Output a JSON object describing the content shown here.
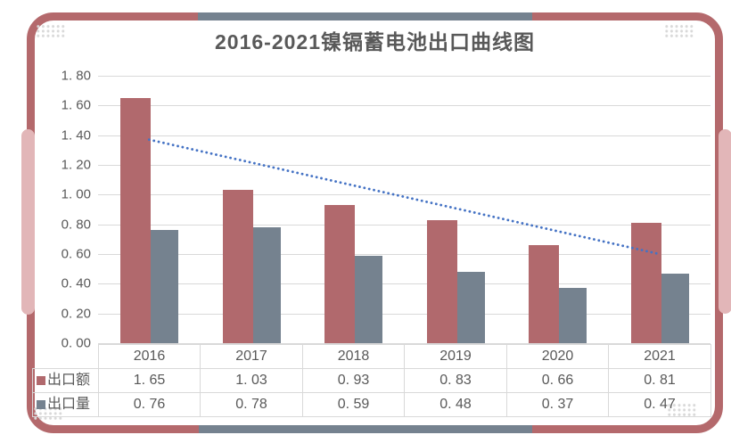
{
  "title": "2016-2021镍镉蓄电池出口曲线图",
  "chart_data": {
    "type": "bar",
    "title": "2016-2021镍镉蓄电池出口曲线图",
    "categories": [
      "2016",
      "2017",
      "2018",
      "2019",
      "2020",
      "2021"
    ],
    "series": [
      {
        "name": "出口额",
        "values": [
          1.65,
          1.03,
          0.93,
          0.83,
          0.66,
          0.81
        ],
        "color": "#b1696d"
      },
      {
        "name": "出口量",
        "values": [
          0.76,
          0.78,
          0.59,
          0.48,
          0.37,
          0.47
        ],
        "color": "#75828f"
      }
    ],
    "trendline": {
      "series": "出口额",
      "type": "linear",
      "style": "dotted",
      "start_value": 1.37,
      "end_value": 0.6,
      "color": "#4472c4"
    },
    "ylim": [
      0,
      1.8
    ],
    "ytick_step": 0.2,
    "ytick_labels": [
      "0. 00",
      "0. 20",
      "0. 40",
      "0. 60",
      "0. 80",
      "1. 00",
      "1. 20",
      "1. 40",
      "1. 60",
      "1. 80"
    ],
    "grid": true,
    "legend_position": "table-left"
  },
  "table": {
    "columns": [
      "2016",
      "2017",
      "2018",
      "2019",
      "2020",
      "2021"
    ],
    "rows": [
      {
        "label": "出口额",
        "marker_color": "#b1696d",
        "values": [
          "1. 65",
          "1. 03",
          "0. 93",
          "0. 83",
          "0. 66",
          "0. 81"
        ]
      },
      {
        "label": "出口量",
        "marker_color": "#75828f",
        "values": [
          "0. 76",
          "0. 78",
          "0. 59",
          "0. 48",
          "0. 37",
          "0. 47"
        ]
      }
    ]
  },
  "colors": {
    "border_accent": "#b4696c",
    "border_secondary": "#75828f",
    "capsule": "#e2b6b8",
    "gridline": "#d9d9d9",
    "text": "#595959",
    "trend": "#4472c4"
  }
}
